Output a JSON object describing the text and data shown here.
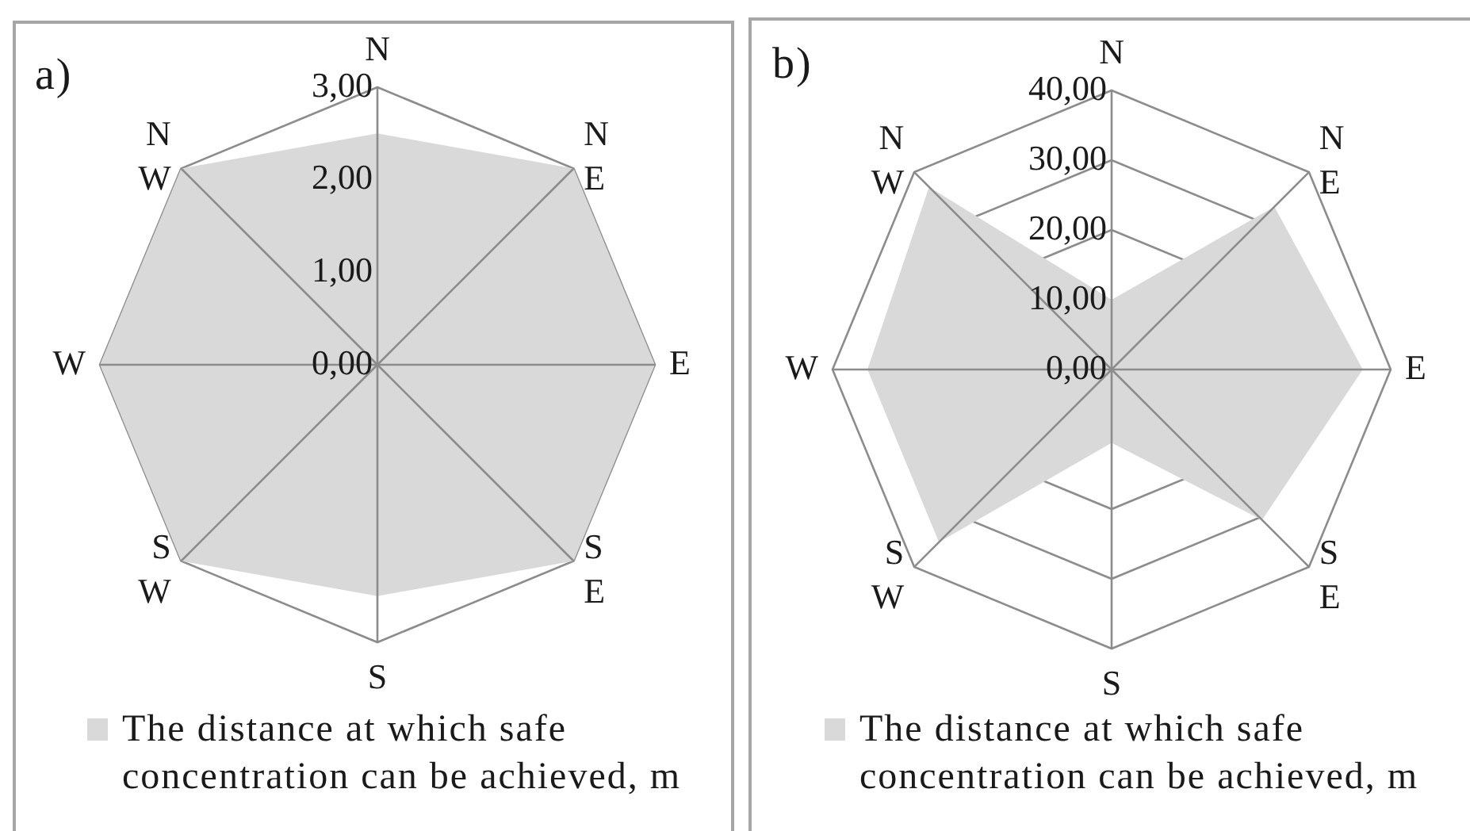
{
  "chart_data": [
    {
      "type": "radar",
      "title": "a)",
      "categories": [
        "N",
        "N\nE",
        "E",
        "S\nE",
        "S",
        "S\nW",
        "W",
        "N\nW"
      ],
      "series": [
        {
          "name": "The distance at which safe concentration can be achieved, m",
          "color": "#d9d9d9",
          "values": [
            2.5,
            3,
            3,
            3,
            2.5,
            3,
            3,
            3
          ]
        }
      ],
      "ylim": [
        0,
        3
      ],
      "yticks": [
        {
          "value": 0,
          "label": "0,00"
        },
        {
          "value": 1,
          "label": "1,00"
        },
        {
          "value": 2,
          "label": "2,00"
        },
        {
          "value": 3,
          "label": "3,00"
        }
      ],
      "grid": true,
      "legend": "bottom"
    },
    {
      "type": "radar",
      "title": "b)",
      "categories": [
        "N",
        "N\nE",
        "E",
        "S\nE",
        "S",
        "S\nW",
        "W",
        "N\nW"
      ],
      "series": [
        {
          "name": "The distance at which safe concentration can be achieved, m",
          "color": "#d9d9d9",
          "values": [
            10,
            33,
            36,
            30.5,
            10.5,
            35,
            35,
            37
          ]
        }
      ],
      "ylim": [
        0,
        40
      ],
      "yticks": [
        {
          "value": 0,
          "label": "0,00"
        },
        {
          "value": 10,
          "label": "10,00"
        },
        {
          "value": 20,
          "label": "20,00"
        },
        {
          "value": 30,
          "label": "30,00"
        },
        {
          "value": 40,
          "label": "40,00"
        }
      ],
      "grid": true,
      "legend": "bottom"
    }
  ]
}
